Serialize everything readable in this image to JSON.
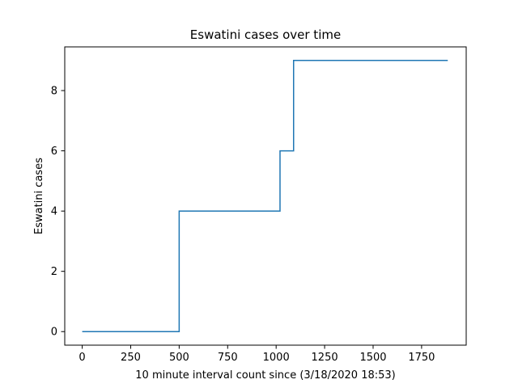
{
  "chart_data": {
    "type": "line",
    "drawstyle": "steps-post",
    "title": "Eswatini cases over time",
    "xlabel": "10 minute interval count since (3/18/2020 18:53)",
    "ylabel": "Eswatini cases",
    "xlim": [
      -90,
      1980
    ],
    "ylim": [
      -0.45,
      9.45
    ],
    "xticks": [
      0,
      250,
      500,
      750,
      1000,
      1250,
      1500,
      1750
    ],
    "yticks": [
      0,
      2,
      4,
      6,
      8
    ],
    "grid": false,
    "series": [
      {
        "color": "#1f77b4",
        "x": [
          0,
          500,
          1020,
          1090,
          1885
        ],
        "y": [
          0,
          4,
          6,
          9,
          9
        ]
      }
    ]
  }
}
